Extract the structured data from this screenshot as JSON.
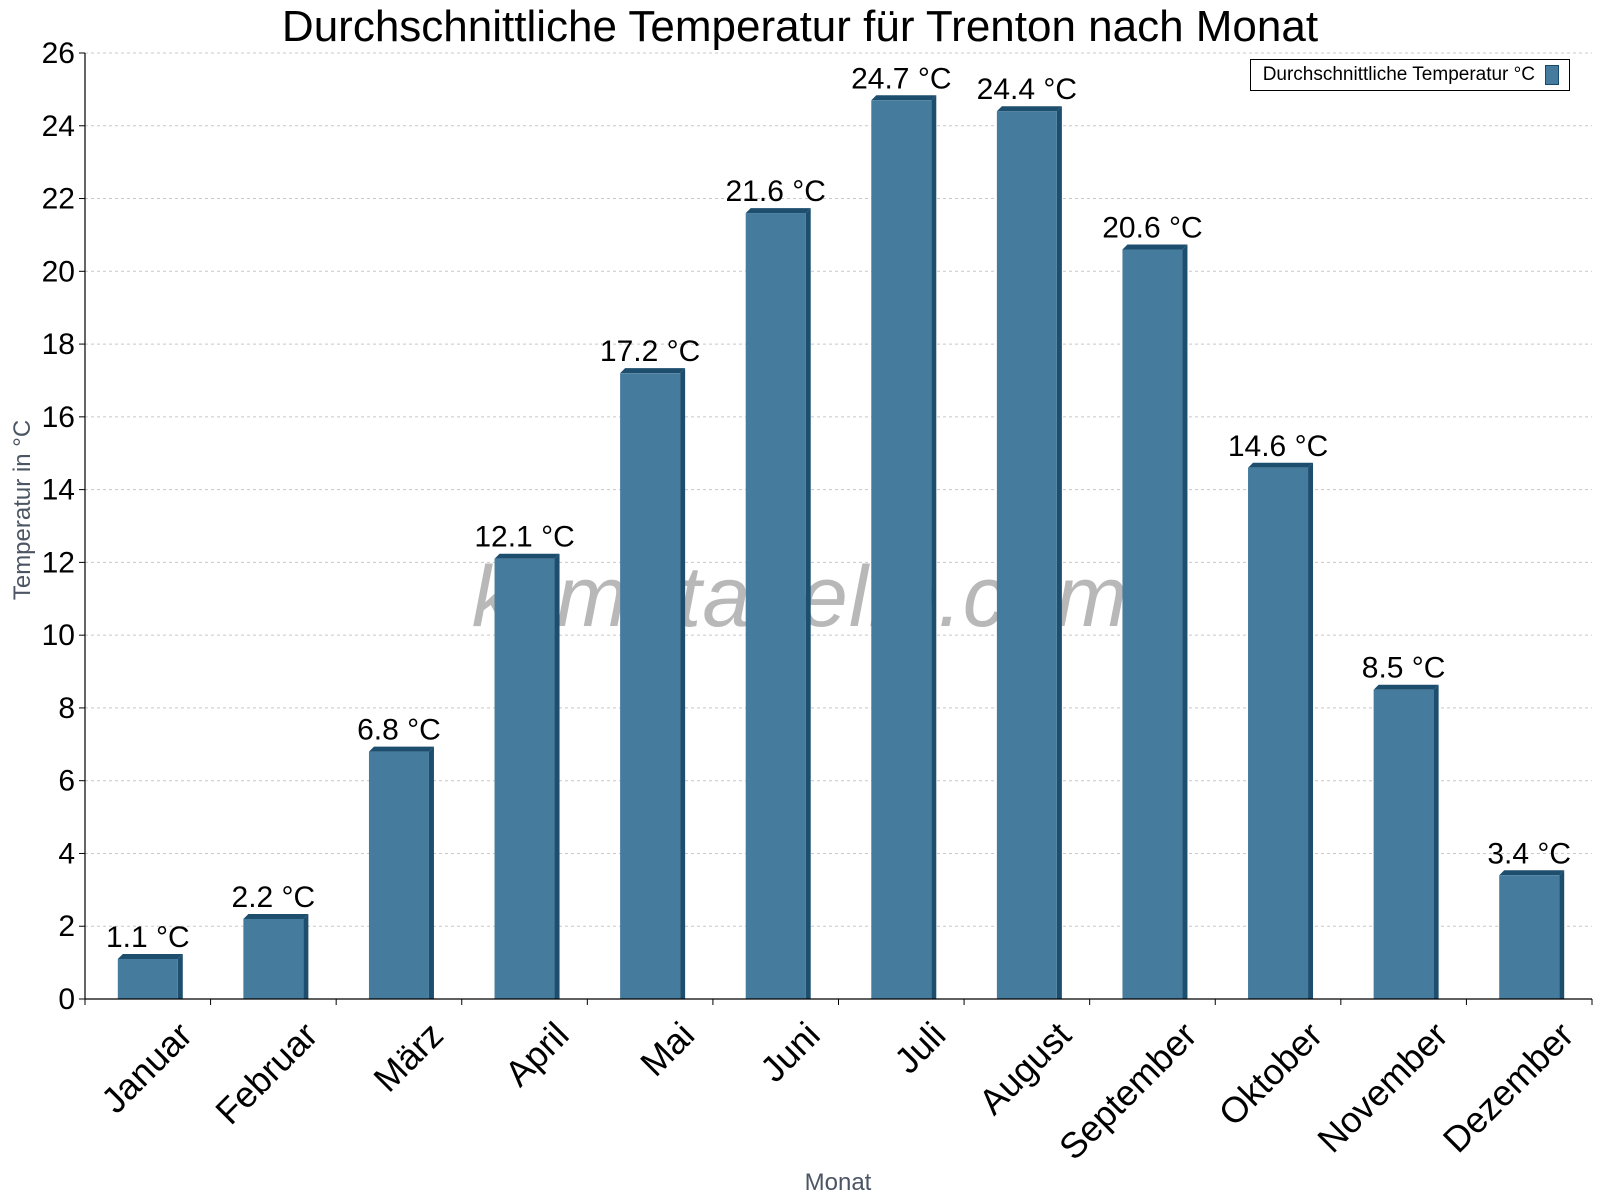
{
  "chart_data": {
    "type": "bar",
    "title": "Durchschnittliche Temperatur für Trenton nach Monat",
    "xlabel": "Monat",
    "ylabel": "Temperatur in °C",
    "categories": [
      "Januar",
      "Februar",
      "März",
      "April",
      "Mai",
      "Juni",
      "Juli",
      "August",
      "September",
      "Oktober",
      "November",
      "Dezember"
    ],
    "series": [
      {
        "name": "Durchschnittliche Temperatur °C",
        "values": [
          1.1,
          2.2,
          6.8,
          12.1,
          17.2,
          21.6,
          24.7,
          24.4,
          20.6,
          14.6,
          8.5,
          3.4
        ],
        "labels": [
          "1.1 °C",
          "2.2 °C",
          "6.8 °C",
          "12.1 °C",
          "17.2 °C",
          "21.6 °C",
          "24.7 °C",
          "24.4 °C",
          "20.6 °C",
          "14.6 °C",
          "8.5 °C",
          "3.4 °C"
        ]
      }
    ],
    "ylim": [
      0,
      26
    ],
    "yticks": [
      0,
      2,
      4,
      6,
      8,
      10,
      12,
      14,
      16,
      18,
      20,
      22,
      24,
      26
    ],
    "grid": true,
    "legend_position": "top-right",
    "colors": {
      "bar": "#457b9d",
      "bar_dark": "#1d4e6e",
      "grid": "#c8c8c8"
    },
    "watermark": "klimatabelle.com"
  }
}
